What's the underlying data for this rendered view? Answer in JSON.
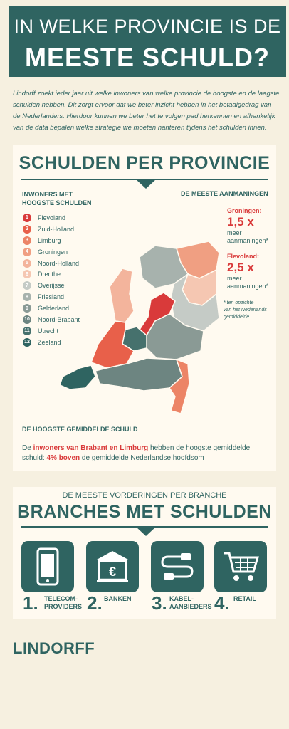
{
  "header": {
    "line1": "IN WELKE PROVINCIE IS DE",
    "line2": "MEESTE SCHULD?"
  },
  "intro": "Lindorff zoekt ieder jaar uit welke inwoners van welke provincie de hoogste en de laagste schulden hebben. Dit zorgt ervoor dat we beter inzicht hebben in het betaalgedrag van de Nederlanders. Hierdoor kunnen we beter het te volgen pad herkennen en afhankelijk van de data bepalen welke strategie we moeten hanteren tijdens het schulden innen.",
  "provincie": {
    "title": "SCHULDEN PER PROVINCIE",
    "left_heading_1": "INWONERS MET",
    "left_heading_2": "HOOGSTE SCHULDEN",
    "right_heading": "DE MEESTE AANMANINGEN",
    "ranking": [
      {
        "num": "1",
        "name": "Flevoland",
        "color": "#d93a3a"
      },
      {
        "num": "2",
        "name": "Zuid-Holland",
        "color": "#e8604a"
      },
      {
        "num": "3",
        "name": "Limburg",
        "color": "#ec8466"
      },
      {
        "num": "4",
        "name": "Groningen",
        "color": "#f09f82"
      },
      {
        "num": "5",
        "name": "Noord-Holland",
        "color": "#f3b49c"
      },
      {
        "num": "6",
        "name": "Drenthe",
        "color": "#f5c7b2"
      },
      {
        "num": "7",
        "name": "Overijssel",
        "color": "#c5cbc6"
      },
      {
        "num": "8",
        "name": "Friesland",
        "color": "#a7b2ad"
      },
      {
        "num": "9",
        "name": "Gelderland",
        "color": "#8a9a95"
      },
      {
        "num": "10",
        "name": "Noord-Brabant",
        "color": "#6d8581"
      },
      {
        "num": "11",
        "name": "Utrecht",
        "color": "#46716d"
      },
      {
        "num": "12",
        "name": "Zeeland",
        "color": "#2f6461"
      }
    ],
    "stat1": {
      "prov": "Groningen:",
      "value": "1,5 x",
      "l1": "meer",
      "l2": "aanmaningen*"
    },
    "stat2": {
      "prov": "Flevoland:",
      "value": "2,5 x",
      "l1": "meer",
      "l2": "aanmaningen*"
    },
    "footnote_1": "* ten opzichte",
    "footnote_2": "van het Nederlands",
    "footnote_3": "gemiddelde",
    "bottom_heading": "DE HOOGSTE GEMIDDELDE SCHULD",
    "bottom_p1": "De ",
    "bottom_hl1": "inwoners van Brabant en Limburg",
    "bottom_p2": " hebben de hoogste gemiddelde schuld: ",
    "bottom_hl2": "4% boven",
    "bottom_p3": " de gemiddelde Nederlandse hoofdsom"
  },
  "branches": {
    "kicker": "DE MEESTE VORDERINGEN PER BRANCHE",
    "title": "BRANCHES MET SCHULDEN",
    "items": [
      {
        "num": "1.",
        "l1": "TELECOM-",
        "l2": "PROVIDERS",
        "icon": "phone-icon"
      },
      {
        "num": "2.",
        "l1": "BANKEN",
        "l2": "",
        "icon": "bank-icon"
      },
      {
        "num": "3.",
        "l1": "KABEL-",
        "l2": "AANBIEDERS",
        "icon": "cable-icon"
      },
      {
        "num": "4.",
        "l1": "RETAIL",
        "l2": "",
        "icon": "cart-icon"
      }
    ]
  },
  "logo": "LINDORFF",
  "colors": {
    "accent": "#2f6461",
    "highlight": "#d93a3a",
    "background": "#f6f0e0"
  }
}
